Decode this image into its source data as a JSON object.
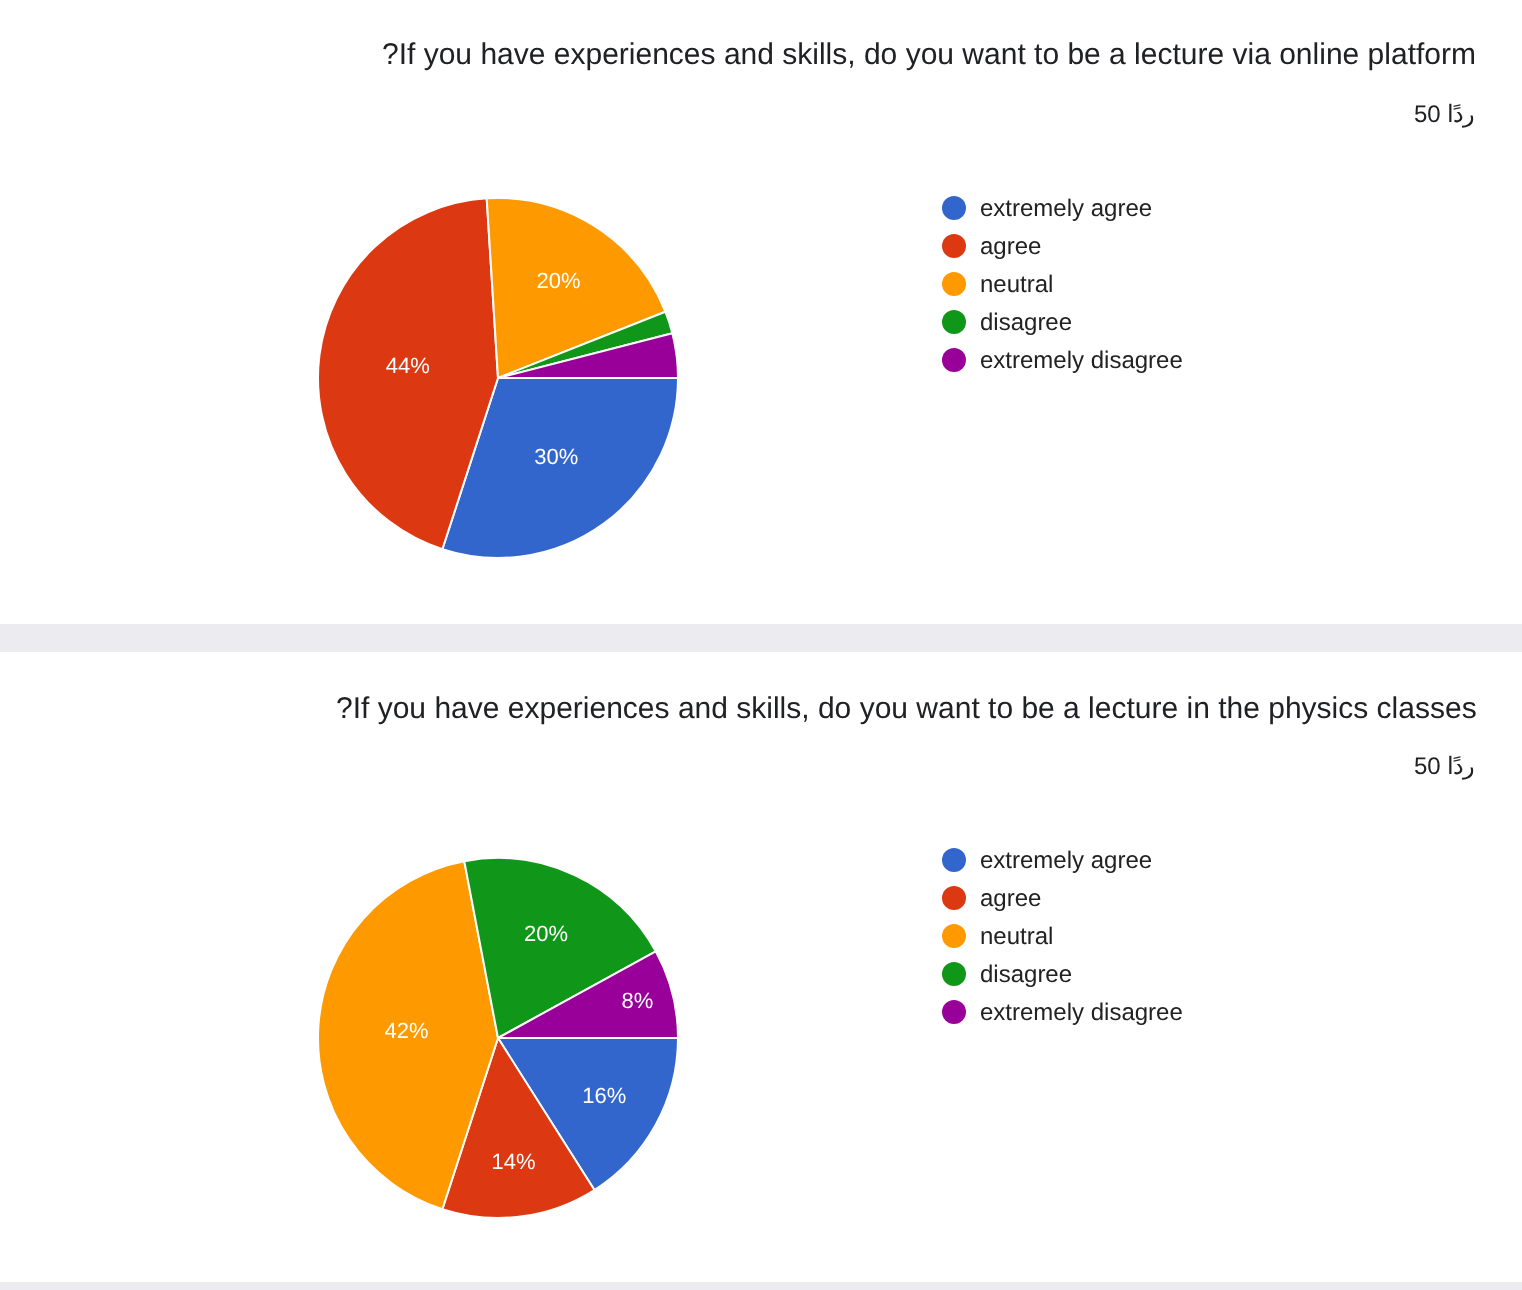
{
  "chart_data": [
    {
      "type": "pie",
      "title": "?If you have experiences and skills, do you want to be a lecture via online platform",
      "subtitle": "50 ردًا",
      "categories": [
        "extremely agree",
        "agree",
        "neutral",
        "disagree",
        "extremely disagree"
      ],
      "values": [
        30,
        44,
        20,
        2,
        4
      ],
      "colors": [
        "#3366cc",
        "#dc3912",
        "#ff9900",
        "#109618",
        "#990099"
      ],
      "value_labels": [
        "30%",
        "44%",
        "20%",
        null,
        null
      ],
      "legend": "right"
    },
    {
      "type": "pie",
      "title": "?If you have experiences and skills, do you want to be a lecture in the physics classes",
      "subtitle": "50 ردًا",
      "categories": [
        "extremely agree",
        "agree",
        "neutral",
        "disagree",
        "extremely disagree"
      ],
      "values": [
        16,
        14,
        42,
        20,
        8
      ],
      "colors": [
        "#3366cc",
        "#dc3912",
        "#ff9900",
        "#109618",
        "#990099"
      ],
      "value_labels": [
        "16%",
        "14%",
        "42%",
        "20%",
        "8%"
      ],
      "legend": "right"
    }
  ]
}
